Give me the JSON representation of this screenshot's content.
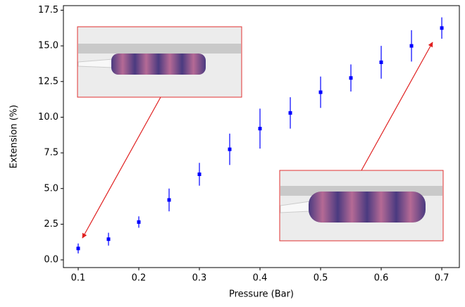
{
  "chart_data": {
    "type": "scatter",
    "x_label": "Pressure (Bar)",
    "y_label": "Extension (%)",
    "x": [
      0.1,
      0.15,
      0.2,
      0.25,
      0.3,
      0.35,
      0.4,
      0.45,
      0.5,
      0.55,
      0.6,
      0.65,
      0.7
    ],
    "values": [
      0.8,
      1.45,
      2.65,
      4.2,
      6.0,
      7.75,
      9.2,
      10.3,
      11.75,
      12.75,
      13.85,
      15.0,
      16.25
    ],
    "errors": [
      0.35,
      0.45,
      0.4,
      0.8,
      0.8,
      1.1,
      1.4,
      1.1,
      1.1,
      0.95,
      1.15,
      1.1,
      0.75
    ],
    "color": "#0000ff",
    "xlim": [
      0.0756,
      0.729
    ],
    "ylim": [
      -0.54,
      17.82
    ],
    "xticks": [
      0.1,
      0.2,
      0.3,
      0.4,
      0.5,
      0.6,
      0.7
    ],
    "yticks": [
      {
        "value": 0,
        "label": "0.0"
      },
      2.5,
      {
        "value": 5,
        "label": "5.0"
      },
      7.5,
      {
        "value": 10,
        "label": "10.0"
      },
      12.5,
      {
        "value": 15,
        "label": "15.0"
      },
      17.5
    ]
  }
}
